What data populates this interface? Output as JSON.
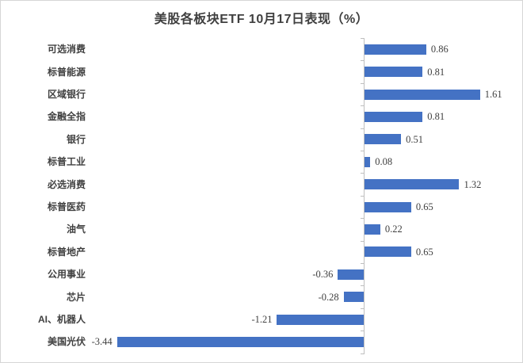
{
  "title": "美股各板块ETF 10月17日表现（%）",
  "chart_data": {
    "type": "bar",
    "orientation": "horizontal",
    "title": "美股各板块ETF 10月17日表现（%）",
    "categories": [
      "可选消费",
      "标普能源",
      "区域银行",
      "金融全指",
      "银行",
      "标普工业",
      "必选消费",
      "标普医药",
      "油气",
      "标普地产",
      "公用事业",
      "芯片",
      "AI、机器人",
      "美国光伏"
    ],
    "values": [
      0.86,
      0.81,
      1.61,
      0.81,
      0.51,
      0.08,
      1.32,
      0.65,
      0.22,
      0.65,
      -0.36,
      -0.28,
      -1.21,
      -3.44
    ],
    "labels": [
      "0.86",
      "0.81",
      "1.61",
      "0.81",
      "0.51",
      "0.08",
      "1.32",
      "0.65",
      "0.22",
      "0.65",
      "-0.36",
      "-0.28",
      "-1.21",
      "-3.44"
    ],
    "xlabel": "",
    "ylabel": "",
    "xlim": [
      -3.5,
      2.2
    ],
    "grid": false,
    "legend": false,
    "data_label_position": "outside-end",
    "bar_color": "#4472C4",
    "axis_color": "#BFBFBF",
    "text_color": "#404040"
  }
}
